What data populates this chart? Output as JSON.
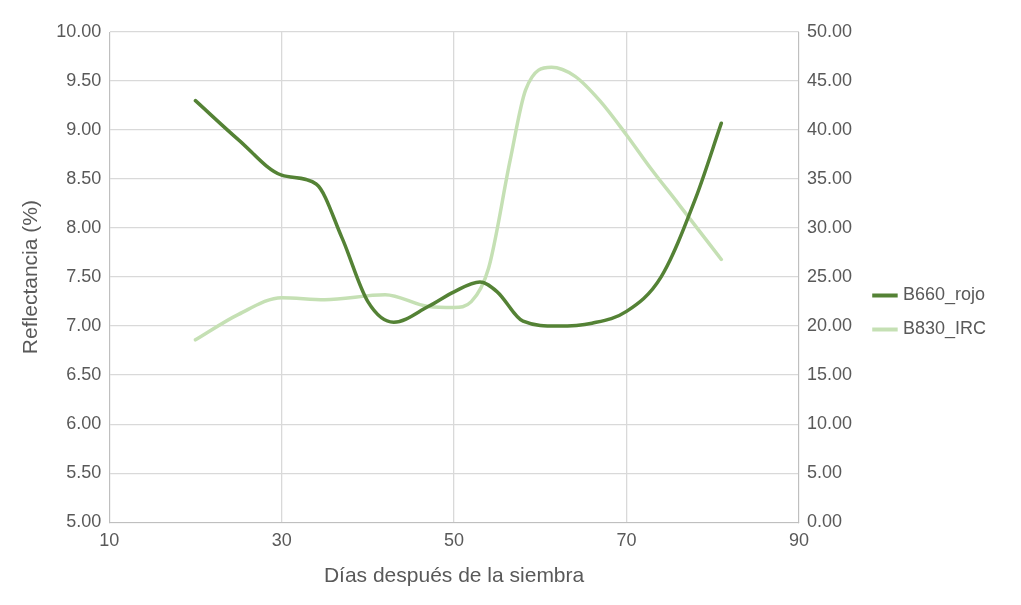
{
  "chart_data": {
    "type": "line",
    "xlabel": "Días después de la siembra",
    "ylabel": "Reflectancia (%)",
    "xlim": [
      10,
      90
    ],
    "xticks": [
      10,
      30,
      50,
      70,
      90
    ],
    "ylim": [
      5,
      10
    ],
    "yticks": [
      {
        "value": 5,
        "label": "5.00"
      },
      {
        "value": 5.5,
        "label": "5.50"
      },
      {
        "value": 6,
        "label": "6.00"
      },
      {
        "value": 6.5,
        "label": "6.50"
      },
      {
        "value": 7,
        "label": "7.00"
      },
      {
        "value": 7.5,
        "label": "7.50"
      },
      {
        "value": 8,
        "label": "8.00"
      },
      {
        "value": 8.5,
        "label": "8.50"
      },
      {
        "value": 9,
        "label": "9.00"
      },
      {
        "value": 9.5,
        "label": "9.50"
      },
      {
        "value": 10,
        "label": "10.00"
      }
    ],
    "y2lim": [
      0,
      50
    ],
    "y2ticks": [
      {
        "value": 0,
        "label": "0.00"
      },
      {
        "value": 5,
        "label": "5.00"
      },
      {
        "value": 10,
        "label": "10.00"
      },
      {
        "value": 15,
        "label": "15.00"
      },
      {
        "value": 20,
        "label": "20.00"
      },
      {
        "value": 25,
        "label": "25.00"
      },
      {
        "value": 30,
        "label": "30.00"
      },
      {
        "value": 35,
        "label": "35.00"
      },
      {
        "value": 40,
        "label": "40.00"
      },
      {
        "value": 45,
        "label": "45.00"
      },
      {
        "value": 50,
        "label": "50.00"
      }
    ],
    "grid": true,
    "legend": "right",
    "marker": "none",
    "line_style": "solid",
    "series": [
      {
        "name": "B660_rojo",
        "color": "#548235",
        "x": [
          20,
          25,
          30,
          34,
          37,
          40,
          43,
          47,
          50,
          53,
          55,
          58,
          62,
          66,
          70,
          74,
          78,
          81
        ],
        "values": [
          9.3,
          8.9,
          8.54,
          8.45,
          7.9,
          7.25,
          7.04,
          7.2,
          7.35,
          7.45,
          7.35,
          7.05,
          7.0,
          7.03,
          7.15,
          7.5,
          8.3,
          9.07
        ]
      },
      {
        "name": "B830_IRC",
        "color": "#c5e0b4",
        "axis": "y2",
        "x": [
          20,
          25,
          30,
          35,
          42,
          47,
          50,
          52,
          54,
          56.5,
          58.3,
          61.3,
          64,
          66.9,
          70,
          72.8,
          76,
          81
        ],
        "values": [
          18.6,
          21.2,
          22.9,
          22.7,
          23.2,
          22.0,
          21.9,
          22.5,
          25.9,
          36.9,
          44.1,
          46.4,
          45.5,
          43.0,
          39.5,
          36.1,
          32.5,
          26.8
        ]
      }
    ]
  }
}
